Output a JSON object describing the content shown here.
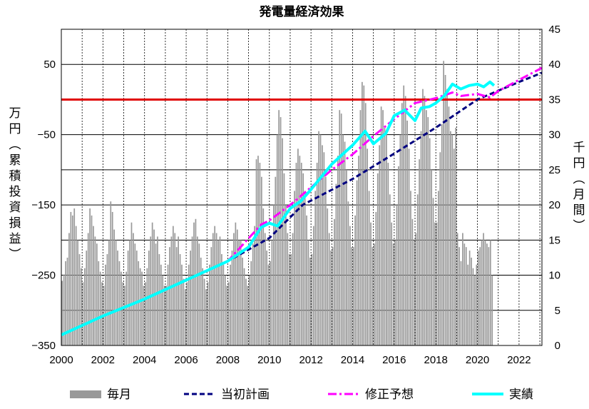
{
  "chart_data": {
    "type": "bar+line",
    "title": "発電量経済効果",
    "ylabel_left": "万円（累積投資損益）",
    "ylabel_right": "千円（月間）",
    "x_ticks": [
      "2000",
      "2002",
      "2004",
      "2006",
      "2008",
      "2010",
      "2012",
      "2014",
      "2016",
      "2018",
      "2020",
      "2022"
    ],
    "xlim": [
      2000.0,
      2023.1
    ],
    "ylim_left": [
      -350,
      100
    ],
    "yticks_left": [
      -350,
      -250,
      -150,
      -50,
      50
    ],
    "ylim_right": [
      0,
      45
    ],
    "yticks_right": [
      0,
      5,
      10,
      15,
      20,
      25,
      30,
      35,
      40,
      45
    ],
    "grid": true,
    "reference_line": {
      "axis": "left",
      "value": 0,
      "color": "#e00000"
    },
    "legend_position": "bottom",
    "series": [
      {
        "name": "毎月",
        "kind": "bar",
        "axis": "right",
        "color": "#999999",
        "x_start": 2000.0,
        "x_step": 0.0833,
        "values_by_year": {
          "2000": [
            9.2,
            10.1,
            12.0,
            12.5,
            16.0,
            19.0,
            18.5,
            19.5,
            17.0,
            15.0,
            13.0,
            11.0
          ],
          "2001": [
            9.0,
            11.0,
            13.5,
            16.0,
            19.5,
            18.5,
            17.0,
            15.5,
            14.5,
            12.0,
            10.5,
            9.0
          ],
          "2002": [
            8.5,
            11.5,
            13.0,
            15.0,
            20.5,
            19.0,
            16.5,
            15.0,
            13.5,
            12.0,
            10.5,
            9.0
          ],
          "2003": [
            8.5,
            10.5,
            13.5,
            15.0,
            17.5,
            16.0,
            14.5,
            13.5,
            12.0,
            11.0,
            10.5,
            8.5
          ],
          "2004": [
            9.0,
            11.0,
            13.5,
            15.5,
            17.5,
            16.5,
            14.5,
            15.5,
            13.0,
            11.5,
            10.0,
            8.5
          ],
          "2005": [
            8.5,
            11.5,
            14.0,
            15.5,
            17.0,
            16.0,
            14.0,
            15.5,
            13.0,
            11.5,
            9.5,
            8.0
          ],
          "2006": [
            9.0,
            11.5,
            13.5,
            15.5,
            17.5,
            18.0,
            15.5,
            14.5,
            12.5,
            11.0,
            9.5,
            8.0
          ],
          "2007": [
            9.0,
            11.5,
            14.0,
            16.0,
            17.0,
            16.0,
            15.0,
            15.5,
            13.0,
            11.5,
            10.0,
            8.5
          ],
          "2008": [
            9.0,
            11.5,
            13.5,
            16.0,
            17.5,
            16.5,
            15.0,
            15.0,
            12.5,
            11.0,
            9.5,
            8.5
          ],
          "2009": [
            10.0,
            12.0,
            14.5,
            17.0,
            26.5,
            27.0,
            26.0,
            24.0,
            19.5,
            16.0,
            13.5,
            11.5
          ],
          "2010": [
            12.0,
            15.0,
            20.0,
            24.0,
            30.0,
            33.5,
            32.5,
            29.5,
            24.5,
            20.0,
            16.0,
            13.0
          ],
          "2011": [
            13.0,
            16.0,
            22.0,
            26.0,
            28.0,
            27.0,
            26.0,
            24.5,
            22.0,
            18.5,
            15.0,
            12.5
          ],
          "2012": [
            13.0,
            17.0,
            22.0,
            26.0,
            30.5,
            30.0,
            28.5,
            27.5,
            24.0,
            19.5,
            16.0,
            13.5
          ],
          "2013": [
            14.0,
            18.0,
            23.0,
            27.0,
            33.5,
            33.0,
            30.0,
            29.0,
            25.0,
            20.5,
            17.0,
            14.0
          ],
          "2014": [
            14.0,
            18.5,
            23.5,
            27.0,
            33.5,
            37.5,
            37.0,
            34.5,
            28.0,
            22.0,
            17.5,
            14.0
          ],
          "2015": [
            14.5,
            19.0,
            24.5,
            28.5,
            34.0,
            33.5,
            31.0,
            30.5,
            26.0,
            21.5,
            17.5,
            14.5
          ],
          "2016": [
            15.0,
            20.0,
            25.5,
            30.0,
            34.5,
            37.0,
            35.5,
            32.0,
            28.0,
            22.0,
            18.0,
            15.0
          ],
          "2017": [
            16.0,
            21.5,
            26.5,
            30.5,
            36.5,
            35.5,
            33.5,
            32.5,
            29.5,
            25.0,
            21.0,
            17.5
          ],
          "2018": [
            17.5,
            22.0,
            27.5,
            31.5,
            40.5,
            38.5,
            36.5,
            34.0,
            30.5,
            30.0,
            28.0,
            31.0
          ],
          "2019": [
            16.0,
            14.0,
            12.0,
            16.0,
            14.5,
            14.0,
            11.5,
            13.5,
            12.5,
            11.0,
            10.0,
            11.5
          ],
          "2020": [
            13.5,
            14.0,
            15.0,
            16.0,
            15.0,
            14.5,
            14.0,
            15.0,
            10.0,
            0.0,
            0.0,
            0.0
          ]
        }
      },
      {
        "name": "当初計画",
        "kind": "line",
        "axis": "left",
        "style": "dashed",
        "color": "#000080",
        "x": [
          2000.0,
          2002.0,
          2004.0,
          2006.0,
          2008.0,
          2010.0,
          2011.6,
          2014.0,
          2016.0,
          2018.0,
          2020.0,
          2022.0,
          2023.1
        ],
        "y": [
          -335,
          -308,
          -284,
          -257,
          -230,
          -197,
          -150,
          -113,
          -77,
          -40,
          0,
          25,
          38
        ]
      },
      {
        "name": "修正予想",
        "kind": "line",
        "axis": "left",
        "style": "dashdot",
        "color": "#ff00ff",
        "x": [
          2000.0,
          2002.0,
          2004.0,
          2006.0,
          2008.0,
          2009.6,
          2010.0,
          2011.0,
          2012.0,
          2013.0,
          2014.0,
          2015.0,
          2016.0,
          2017.0,
          2018.0,
          2018.8,
          2019.2,
          2020.0,
          2020.6,
          2021.0,
          2022.0,
          2023.1
        ],
        "y": [
          -335,
          -308,
          -284,
          -257,
          -230,
          -178,
          -172,
          -150,
          -125,
          -100,
          -78,
          -52,
          -28,
          -5,
          2,
          10,
          5,
          8,
          3,
          12,
          28,
          45
        ]
      },
      {
        "name": "実績",
        "kind": "line",
        "axis": "left",
        "style": "solid",
        "color": "#00ffff",
        "x": [
          2000.0,
          2002.0,
          2004.0,
          2006.0,
          2008.0,
          2009.0,
          2009.6,
          2010.0,
          2010.4,
          2011.0,
          2011.5,
          2012.0,
          2013.0,
          2014.0,
          2014.6,
          2015.0,
          2015.6,
          2016.0,
          2016.5,
          2017.0,
          2017.3,
          2017.7,
          2018.0,
          2018.4,
          2018.8,
          2019.2,
          2019.6,
          2020.0,
          2020.3,
          2020.6,
          2020.8
        ],
        "y": [
          -335,
          -308,
          -284,
          -257,
          -230,
          -210,
          -182,
          -176,
          -180,
          -155,
          -145,
          -128,
          -92,
          -65,
          -45,
          -63,
          -48,
          -23,
          -15,
          -30,
          -12,
          -10,
          -5,
          5,
          22,
          15,
          20,
          22,
          18,
          25,
          20
        ]
      }
    ]
  }
}
